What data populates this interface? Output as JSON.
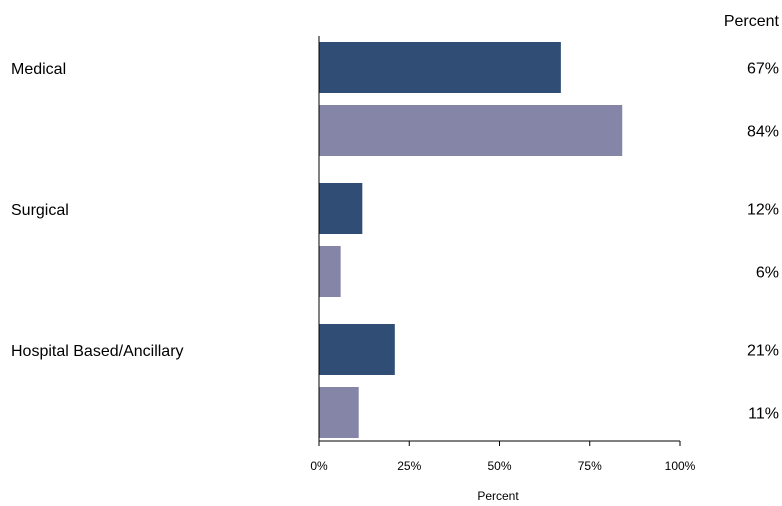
{
  "chart_data": {
    "type": "bar",
    "orientation": "horizontal",
    "categories": [
      "Medical",
      "Surgical",
      "Hospital Based/Ancillary"
    ],
    "series": [
      {
        "values": [
          67,
          12,
          21
        ],
        "color": "#2f4d75"
      },
      {
        "values": [
          84,
          6,
          11
        ],
        "color": "#8586a7"
      }
    ],
    "value_labels": [
      [
        "67%",
        "12%",
        "21%"
      ],
      [
        "84%",
        "6%",
        "11%"
      ]
    ],
    "value_column_header": "Percent",
    "xlabel": "Percent",
    "xlim": [
      0,
      100
    ],
    "x_ticks": [
      0,
      25,
      50,
      75,
      100
    ],
    "x_tick_labels": [
      "0%",
      "25%",
      "50%",
      "75%",
      "100%"
    ],
    "grid": false,
    "legend": "none"
  }
}
